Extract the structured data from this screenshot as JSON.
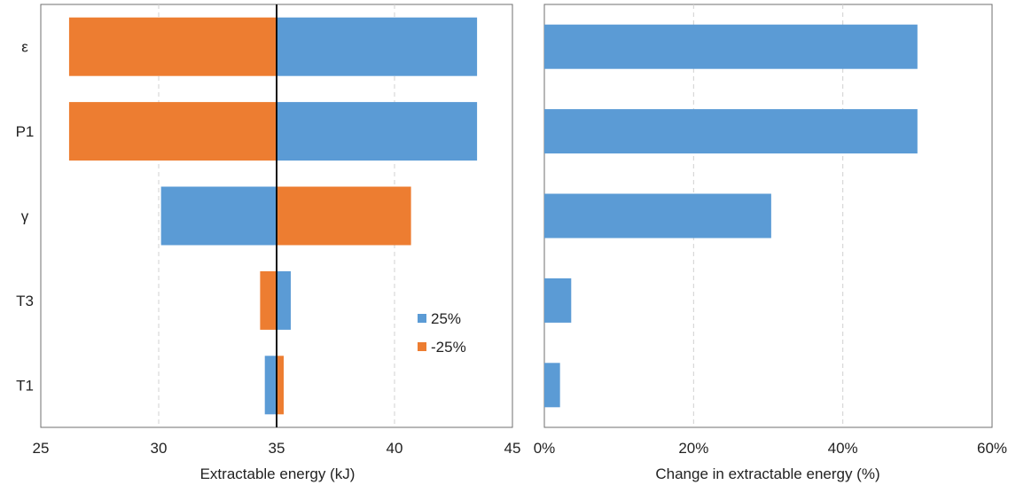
{
  "chart_data": [
    {
      "type": "bar",
      "orientation": "horizontal",
      "subtype": "tornado",
      "categories": [
        "ε",
        "P1",
        "γ",
        "T3",
        "T1"
      ],
      "baseline": 35,
      "series": [
        {
          "name": "25%",
          "color": "#5b9bd5",
          "values": [
            43.5,
            43.5,
            30.1,
            35.6,
            34.5
          ]
        },
        {
          "name": "-25%",
          "color": "#ed7d31",
          "values": [
            26.2,
            26.2,
            40.7,
            34.3,
            35.3
          ]
        }
      ],
      "xlabel": "Extractable energy (kJ)",
      "ylabel": "",
      "xlim": [
        25,
        45
      ],
      "xticks": [
        25,
        30,
        35,
        40,
        45
      ],
      "grid": "vertical dashed",
      "legend_position": "bottom-right"
    },
    {
      "type": "bar",
      "orientation": "horizontal",
      "categories": [
        "ε",
        "P1",
        "γ",
        "T3",
        "T1"
      ],
      "series": [
        {
          "name": "",
          "color": "#5b9bd5",
          "values": [
            50,
            50,
            30.4,
            3.6,
            2.1
          ]
        }
      ],
      "xlabel": "Change in extractable energy (%)",
      "ylabel": "",
      "xlim": [
        0,
        60
      ],
      "xticks": [
        "0%",
        "20%",
        "40%",
        "60%"
      ],
      "grid": "vertical dashed",
      "legend_position": "none"
    }
  ]
}
